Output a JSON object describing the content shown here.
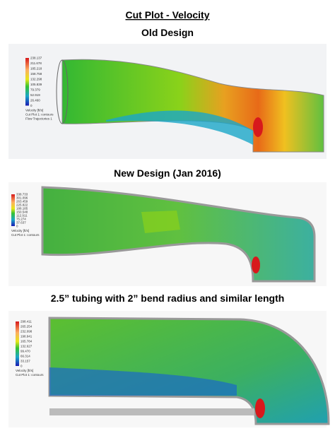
{
  "header": {
    "title": "Cut Plot - Velocity"
  },
  "sections": [
    {
      "heading": "Old Design",
      "legend": {
        "values": [
          "238.137",
          "211.678",
          "185.218",
          "158.758",
          "132.298",
          "105.839",
          "79.379",
          "52.919",
          "26.460",
          "0"
        ],
        "quantity": "Velocity [ft/s]",
        "notes": [
          "Cut Plot 1: contours",
          "Flow Trajectories 1"
        ]
      }
    },
    {
      "heading": "New Design (Jan 2016)",
      "legend": {
        "values": [
          "338.733",
          "301.096",
          "263.459",
          "225.822",
          "188.185",
          "150.548",
          "112.911",
          "75.274",
          "37.637",
          "0"
        ],
        "quantity": "Velocity [ft/s]",
        "notes": [
          "Cut Plot 1: contours"
        ]
      }
    },
    {
      "heading": "2.5” tubing with 2” bend radius and similar length",
      "legend": {
        "values": [
          "298.411",
          "265.254",
          "232.098",
          "198.941",
          "165.784",
          "132.627",
          "99.470",
          "66.314",
          "33.157",
          "0"
        ],
        "quantity": "Velocity [ft/s]",
        "notes": [
          "Cut Plot 1: contours"
        ]
      }
    }
  ]
}
